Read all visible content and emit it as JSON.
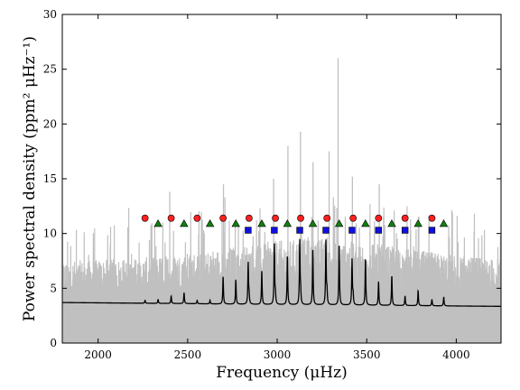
{
  "chart_data": {
    "type": "line",
    "xlabel": "Frequency (μHz)",
    "ylabel": "Power spectral density (ppm² μHz⁻¹)",
    "xlim": [
      1800,
      4250
    ],
    "ylim": [
      0,
      30
    ],
    "x_ticks": [
      2000,
      2500,
      3000,
      3500,
      4000
    ],
    "y_ticks": [
      0,
      5,
      10,
      15,
      20,
      25,
      30
    ],
    "x_tick_labels": [
      "2000",
      "2500",
      "3000",
      "3500",
      "4000"
    ],
    "y_tick_labels": [
      "0",
      "5",
      "10",
      "15",
      "20",
      "25",
      "30"
    ],
    "grid": false,
    "legend": "none",
    "colors": {
      "raw_spectrum": "#c0c0c0",
      "smoothed_spectrum": "#000000",
      "circle_markers": "#ff2020",
      "triangle_markers": "#108010",
      "square_markers": "#1010e0"
    },
    "raw_spectrum": {
      "description_level_typical_max": 9,
      "x_range": [
        1800,
        4250
      ],
      "tall_peaks": [
        {
          "x": 3340,
          "y": 26.0
        },
        {
          "x": 3130,
          "y": 19.3
        },
        {
          "x": 3060,
          "y": 18.0
        },
        {
          "x": 3290,
          "y": 17.5
        },
        {
          "x": 3200,
          "y": 16.5
        },
        {
          "x": 3420,
          "y": 15.2
        },
        {
          "x": 2980,
          "y": 15.0
        },
        {
          "x": 2700,
          "y": 14.5
        },
        {
          "x": 2400,
          "y": 13.8
        },
        {
          "x": 3570,
          "y": 14.5
        }
      ]
    },
    "smoothed_spectrum": {
      "baseline": [
        [
          1800,
          3.7
        ],
        [
          2500,
          3.6
        ],
        [
          3000,
          3.5
        ],
        [
          3500,
          3.45
        ],
        [
          4250,
          3.35
        ]
      ],
      "peaks": [
        {
          "x": 2262,
          "y": 3.9
        },
        {
          "x": 2335,
          "y": 4.0
        },
        {
          "x": 2408,
          "y": 4.3
        },
        {
          "x": 2480,
          "y": 4.6
        },
        {
          "x": 2553,
          "y": 3.9
        },
        {
          "x": 2625,
          "y": 3.9
        },
        {
          "x": 2698,
          "y": 6.1
        },
        {
          "x": 2769,
          "y": 5.8
        },
        {
          "x": 2838,
          "y": 7.3
        },
        {
          "x": 2843,
          "y": 4.3
        },
        {
          "x": 2914,
          "y": 6.6
        },
        {
          "x": 2984,
          "y": 9.0
        },
        {
          "x": 2990,
          "y": 4.4
        },
        {
          "x": 3057,
          "y": 8.0
        },
        {
          "x": 3126,
          "y": 9.3
        },
        {
          "x": 3131,
          "y": 4.6
        },
        {
          "x": 3199,
          "y": 8.7
        },
        {
          "x": 3272,
          "y": 9.3
        },
        {
          "x": 3278,
          "y": 4.7
        },
        {
          "x": 3346,
          "y": 9.1
        },
        {
          "x": 3418,
          "y": 7.6
        },
        {
          "x": 3424,
          "y": 4.4
        },
        {
          "x": 3493,
          "y": 7.8
        },
        {
          "x": 3566,
          "y": 5.6
        },
        {
          "x": 3640,
          "y": 6.2
        },
        {
          "x": 3714,
          "y": 4.3
        },
        {
          "x": 3787,
          "y": 4.8
        },
        {
          "x": 3864,
          "y": 4.0
        },
        {
          "x": 3930,
          "y": 4.2
        }
      ]
    },
    "markers": [
      {
        "name": "circles",
        "shape": "circle",
        "y": 11.4,
        "x": [
          2262,
          2408,
          2553,
          2698,
          2843,
          2990,
          3131,
          3278,
          3424,
          3566,
          3714,
          3864
        ]
      },
      {
        "name": "triangles",
        "shape": "triangle",
        "y": 10.9,
        "x": [
          2335,
          2480,
          2625,
          2769,
          2914,
          3057,
          3199,
          3346,
          3493,
          3640,
          3787,
          3930
        ]
      },
      {
        "name": "squares",
        "shape": "square",
        "y": 10.3,
        "x": [
          2838,
          2984,
          3126,
          3272,
          3418,
          3566,
          3714,
          3864
        ]
      }
    ]
  }
}
